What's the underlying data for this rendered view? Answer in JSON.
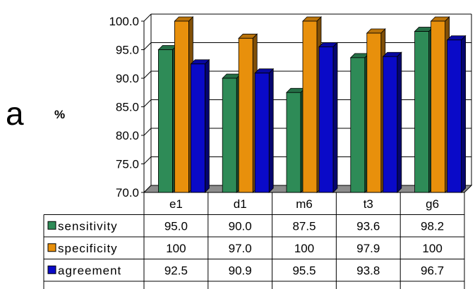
{
  "panel_label": "a",
  "chart_data": {
    "type": "bar",
    "title": "",
    "ylabel": "%",
    "xlabel": "",
    "ylim": [
      70,
      100
    ],
    "yticks": [
      "70.0",
      "75.0",
      "80.0",
      "85.0",
      "90.0",
      "95.0",
      "100.0"
    ],
    "categories": [
      "e1",
      "d1",
      "m6",
      "t3",
      "g6"
    ],
    "series": [
      {
        "name": "sensitivity",
        "color": "#2e8b57",
        "values": [
          95.0,
          90.0,
          87.5,
          93.6,
          98.2
        ],
        "labels": [
          "95.0",
          "90.0",
          "87.5",
          "93.6",
          "98.2"
        ]
      },
      {
        "name": "specificity",
        "color": "#e8900c",
        "values": [
          100,
          97.0,
          100,
          97.9,
          100
        ],
        "labels": [
          "100",
          "97.0",
          "100",
          "97.9",
          "100"
        ]
      },
      {
        "name": "agreement",
        "color": "#0a0ac8",
        "values": [
          92.5,
          90.9,
          95.5,
          93.8,
          96.7
        ],
        "labels": [
          "92.5",
          "90.9",
          "95.5",
          "93.8",
          "96.7"
        ]
      }
    ],
    "grid": true,
    "legend": "data-table-left",
    "style": "3d-clustered-bar-with-data-table"
  }
}
